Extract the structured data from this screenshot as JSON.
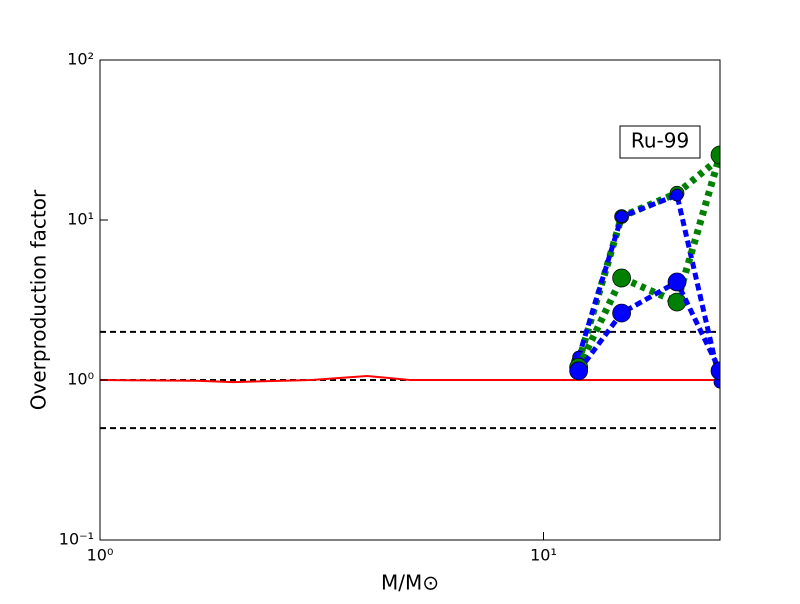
{
  "chart_data": {
    "type": "line",
    "xlabel": "M/M⊙",
    "ylabel": "Overproduction factor",
    "annotation": "Ru-99",
    "xscale": "log",
    "yscale": "log",
    "xlim": [
      1,
      25
    ],
    "ylim": [
      0.1,
      100
    ],
    "xticks": [
      {
        "value": 1,
        "label": "10⁰"
      },
      {
        "value": 10,
        "label": "10¹"
      }
    ],
    "yticks": [
      {
        "value": 0.1,
        "label": "10⁻¹"
      },
      {
        "value": 1,
        "label": "10⁰"
      },
      {
        "value": 10,
        "label": "10¹"
      },
      {
        "value": 100,
        "label": "10²"
      }
    ],
    "hlines": [
      0.5,
      1,
      2
    ],
    "hline_color": "#000000",
    "series": [
      {
        "color": "#ff0000",
        "x": [
          1,
          1.65,
          2,
          3,
          4,
          5,
          6,
          7,
          12,
          15,
          20,
          25
        ],
        "values": [
          1,
          0.99,
          0.97,
          1.0,
          1.06,
          1.0,
          1.0,
          1.0,
          1.0,
          1.0,
          1.0,
          1.0
        ]
      },
      {
        "color": "#008000",
        "x": [
          12,
          15,
          20,
          25
        ],
        "values": [
          1.3,
          10.5,
          14.7,
          24.4
        ]
      },
      {
        "color": "#0000ff",
        "x": [
          12,
          15,
          20,
          25
        ],
        "values": [
          1.39,
          10.5,
          14.3,
          0.97
        ]
      },
      {
        "color": "#008000",
        "x": [
          12,
          15,
          20,
          25
        ],
        "values": [
          1.2,
          4.34,
          3.07,
          25.5
        ]
      },
      {
        "color": "#0000ff",
        "x": [
          12,
          15,
          20,
          25
        ],
        "values": [
          1.14,
          2.62,
          4.1,
          1.14
        ]
      }
    ]
  }
}
